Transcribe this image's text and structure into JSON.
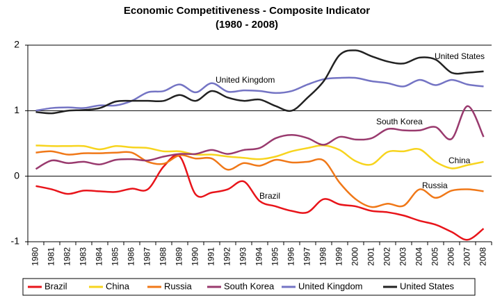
{
  "chart_data": {
    "type": "line",
    "title": "Economic Competitiveness - Composite Indicator",
    "subtitle": "(1980 - 2008)",
    "categories": [
      "1980",
      "1981",
      "1982",
      "1983",
      "1984",
      "1985",
      "1986",
      "1987",
      "1988",
      "1989",
      "1990",
      "1991",
      "1992",
      "1993",
      "1994",
      "1995",
      "1996",
      "1997",
      "1998",
      "1999",
      "2000",
      "2001",
      "2002",
      "2003",
      "2004",
      "2005",
      "2006",
      "2007",
      "2008"
    ],
    "series": [
      {
        "name": "Brazil",
        "color": "#e8141a",
        "values": [
          -0.15,
          -0.2,
          -0.27,
          -0.22,
          -0.23,
          -0.24,
          -0.19,
          -0.2,
          0.15,
          0.3,
          -0.28,
          -0.25,
          -0.2,
          -0.08,
          -0.38,
          -0.46,
          -0.53,
          -0.55,
          -0.35,
          -0.43,
          -0.46,
          -0.53,
          -0.55,
          -0.6,
          -0.68,
          -0.74,
          -0.85,
          -0.97,
          -0.8
        ]
      },
      {
        "name": "China",
        "color": "#f7d41e",
        "values": [
          0.47,
          0.46,
          0.46,
          0.46,
          0.41,
          0.46,
          0.44,
          0.43,
          0.38,
          0.38,
          0.33,
          0.33,
          0.3,
          0.28,
          0.26,
          0.3,
          0.38,
          0.43,
          0.47,
          0.4,
          0.23,
          0.18,
          0.37,
          0.38,
          0.41,
          0.22,
          0.12,
          0.17,
          0.22
        ]
      },
      {
        "name": "Russia",
        "color": "#f07818",
        "values": [
          0.36,
          0.38,
          0.33,
          0.35,
          0.35,
          0.36,
          0.36,
          0.22,
          0.19,
          0.32,
          0.27,
          0.27,
          0.1,
          0.2,
          0.16,
          0.25,
          0.21,
          0.22,
          0.24,
          -0.1,
          -0.35,
          -0.47,
          -0.42,
          -0.45,
          -0.2,
          -0.33,
          -0.22,
          -0.2,
          -0.23
        ]
      },
      {
        "name": "South Korea",
        "color": "#993a6e",
        "values": [
          0.11,
          0.24,
          0.2,
          0.22,
          0.18,
          0.25,
          0.26,
          0.24,
          0.3,
          0.34,
          0.34,
          0.4,
          0.34,
          0.4,
          0.43,
          0.58,
          0.63,
          0.58,
          0.48,
          0.6,
          0.56,
          0.58,
          0.72,
          0.7,
          0.7,
          0.75,
          0.57,
          1.07,
          0.6
        ]
      },
      {
        "name": "United Kingdom",
        "color": "#7474c4",
        "values": [
          1.0,
          1.04,
          1.05,
          1.04,
          1.08,
          1.08,
          1.15,
          1.28,
          1.3,
          1.4,
          1.28,
          1.42,
          1.29,
          1.31,
          1.3,
          1.27,
          1.3,
          1.4,
          1.48,
          1.5,
          1.5,
          1.45,
          1.42,
          1.37,
          1.47,
          1.39,
          1.47,
          1.4,
          1.37
        ]
      },
      {
        "name": "United States",
        "color": "#222222",
        "values": [
          0.98,
          0.96,
          1.0,
          1.01,
          1.04,
          1.14,
          1.15,
          1.15,
          1.15,
          1.24,
          1.15,
          1.3,
          1.2,
          1.15,
          1.17,
          1.07,
          1.0,
          1.2,
          1.45,
          1.85,
          1.92,
          1.83,
          1.75,
          1.72,
          1.81,
          1.78,
          1.58,
          1.58,
          1.6
        ]
      }
    ],
    "ylim": [
      -1,
      2
    ],
    "yticks": [
      -1,
      0,
      1,
      2
    ],
    "grid": true,
    "legend": "bottom"
  }
}
